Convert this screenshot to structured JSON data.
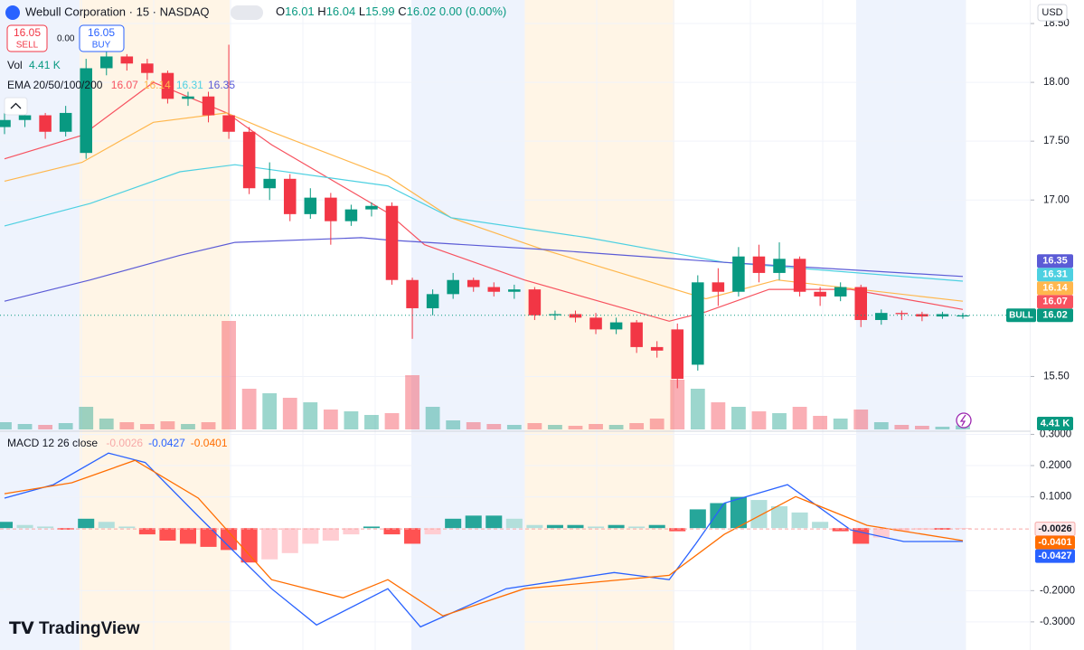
{
  "chart_data": {
    "type": "candlestick",
    "title": "Webull Corporation · 15 · NASDAQ",
    "ohlc_labels": [
      "O",
      "H",
      "L",
      "C"
    ],
    "ohlc_values": [
      16.01,
      16.04,
      15.99,
      16.02
    ],
    "change": "0.00 (0.00%)",
    "sell": {
      "price": 16.05,
      "label": "SELL"
    },
    "spread": "0.00",
    "buy": {
      "price": 16.05,
      "label": "BUY"
    },
    "volume_legend": {
      "label": "Vol",
      "value": "4.41 K"
    },
    "ema_legend": {
      "label": "EMA 20/50/100/200",
      "values": [
        16.07,
        16.14,
        16.31,
        16.35
      ]
    },
    "macd_legend": {
      "label": "MACD 12 26 close",
      "values": [
        -0.0026,
        -0.0427,
        -0.0401
      ]
    },
    "currency": "USD",
    "bull_label": "BULL",
    "brand": "TradingView",
    "up_color": "#089981",
    "down_color": "#f23645",
    "ylim": [
      15.05,
      18.7
    ],
    "yticks": [
      {
        "value": 18.5,
        "label": "18.50"
      },
      {
        "value": 18.0,
        "label": "18.00"
      },
      {
        "value": 17.5,
        "label": "17.50"
      },
      {
        "value": 17.0,
        "label": "17.00"
      },
      {
        "value": 15.5,
        "label": "15.50"
      }
    ],
    "open": [
      17.62,
      17.68,
      17.72,
      17.58,
      17.4,
      18.12,
      18.22,
      18.16,
      18.08,
      17.86,
      17.88,
      17.72,
      17.58,
      17.1,
      17.18,
      16.88,
      17.02,
      16.82,
      16.92,
      16.95,
      16.32,
      16.08,
      16.2,
      16.32,
      16.26,
      16.22,
      16.24,
      16.02,
      16.03,
      16.0,
      15.9,
      15.96,
      15.75,
      15.9,
      15.6,
      16.3,
      16.22,
      16.52,
      16.38,
      16.5,
      16.22,
      16.18,
      16.26,
      15.98,
      16.04,
      16.03,
      16.01,
      16.01
    ],
    "high": [
      17.74,
      17.78,
      17.74,
      17.8,
      18.2,
      18.28,
      18.24,
      18.2,
      18.1,
      17.92,
      17.92,
      18.32,
      17.62,
      17.32,
      17.22,
      17.1,
      17.06,
      16.96,
      16.98,
      16.98,
      16.34,
      16.24,
      16.38,
      16.34,
      16.3,
      16.28,
      16.26,
      16.06,
      16.06,
      16.04,
      16.0,
      15.98,
      15.8,
      15.95,
      16.36,
      16.42,
      16.6,
      16.62,
      16.64,
      16.52,
      16.26,
      16.3,
      16.28,
      16.07,
      16.06,
      16.05,
      16.05,
      16.04
    ],
    "low": [
      17.56,
      17.62,
      17.52,
      17.54,
      17.35,
      18.06,
      18.1,
      18.02,
      17.82,
      17.8,
      17.66,
      17.52,
      17.05,
      17.0,
      16.82,
      16.84,
      16.62,
      16.78,
      16.86,
      16.28,
      15.82,
      16.02,
      16.16,
      16.22,
      16.18,
      16.16,
      15.98,
      15.98,
      15.96,
      15.86,
      15.86,
      15.7,
      15.66,
      15.4,
      15.55,
      16.1,
      16.18,
      16.3,
      16.32,
      16.18,
      16.1,
      16.14,
      15.92,
      15.94,
      15.98,
      15.97,
      15.99,
      15.99
    ],
    "close": [
      17.68,
      17.72,
      17.58,
      17.74,
      18.12,
      18.22,
      18.16,
      18.08,
      17.86,
      17.88,
      17.72,
      17.58,
      17.1,
      17.18,
      16.88,
      17.02,
      16.82,
      16.92,
      16.95,
      16.32,
      16.08,
      16.2,
      16.32,
      16.26,
      16.22,
      16.24,
      16.02,
      16.03,
      16.0,
      15.9,
      15.96,
      15.75,
      15.72,
      15.48,
      16.3,
      16.22,
      16.52,
      16.38,
      16.5,
      16.22,
      16.18,
      16.26,
      15.98,
      16.04,
      16.03,
      16.01,
      16.03,
      16.02
    ],
    "volume": [
      8,
      6,
      5,
      7,
      25,
      12,
      8,
      6,
      9,
      6,
      8,
      120,
      45,
      40,
      35,
      30,
      22,
      20,
      16,
      18,
      60,
      25,
      10,
      8,
      6,
      5,
      7,
      5,
      4,
      6,
      5,
      7,
      12,
      55,
      45,
      30,
      25,
      20,
      18,
      25,
      15,
      12,
      22,
      8,
      5,
      4,
      3,
      4.41
    ],
    "ema": [
      {
        "color": "#f7525f",
        "x": [
          0,
          3.8,
          7.3,
          10.9,
          13.1,
          18.8,
          20.6,
          25.5,
          32.6,
          34.4,
          37.5,
          41.5,
          47
        ],
        "values": [
          17.35,
          17.55,
          18.0,
          17.74,
          17.47,
          16.89,
          16.62,
          16.32,
          15.97,
          16.05,
          16.24,
          16.24,
          16.07
        ]
      },
      {
        "color": "#ffb74d",
        "x": [
          0,
          3.8,
          7.3,
          10.9,
          13.1,
          18.8,
          21.9,
          26.4,
          34.4,
          37.9,
          47
        ],
        "values": [
          17.16,
          17.32,
          17.66,
          17.74,
          17.58,
          17.2,
          16.85,
          16.58,
          16.16,
          16.32,
          16.14
        ]
      },
      {
        "color": "#4dd0e1",
        "x": [
          0,
          4.2,
          8.6,
          11.3,
          18.8,
          21.9,
          28.6,
          35.3,
          47
        ],
        "values": [
          16.78,
          16.97,
          17.24,
          17.3,
          17.12,
          16.85,
          16.68,
          16.47,
          16.31
        ]
      },
      {
        "color": "#5b5bd6",
        "x": [
          0,
          4.2,
          8.6,
          11.3,
          17.5,
          18.8,
          26.4,
          35.3,
          47
        ],
        "values": [
          16.14,
          16.32,
          16.53,
          16.64,
          16.68,
          16.66,
          16.58,
          16.47,
          16.35
        ]
      }
    ],
    "y2lim": [
      -0.39,
      0.31
    ],
    "y2ticks": [
      {
        "value": 0.3,
        "label": "0.3000"
      },
      {
        "value": 0.2,
        "label": "0.2000"
      },
      {
        "value": 0.1,
        "label": "0.1000"
      },
      {
        "value": -0.2,
        "label": "-0.2000"
      },
      {
        "value": -0.3,
        "label": "-0.3000"
      }
    ],
    "macd_hist": [
      0.02,
      0.01,
      0.005,
      -0.005,
      0.03,
      0.02,
      0.005,
      -0.02,
      -0.04,
      -0.05,
      -0.06,
      -0.07,
      -0.11,
      -0.1,
      -0.08,
      -0.05,
      -0.04,
      -0.02,
      0.005,
      -0.02,
      -0.05,
      -0.02,
      0.03,
      0.04,
      0.04,
      0.03,
      0.01,
      0.01,
      0.01,
      0.005,
      0.01,
      0.005,
      0.01,
      -0.01,
      0.06,
      0.08,
      0.1,
      0.09,
      0.07,
      0.05,
      0.02,
      -0.01,
      -0.05,
      -0.03,
      -0.01,
      -0.005,
      -0.005,
      -0.0026
    ],
    "macd_colors": [
      "#f7a9a7",
      "#2962ff",
      "#ff6d00"
    ],
    "macd_line": {
      "x": [
        0,
        2.4,
        5.1,
        6.9,
        9.5,
        13.1,
        15.3,
        18.8,
        20.4,
        24.6,
        29.9,
        32.6,
        33.9,
        35.3,
        38.4,
        41.5,
        44.1,
        47
      ],
      "values": [
        0.096,
        0.139,
        0.24,
        0.21,
        0.038,
        -0.194,
        -0.31,
        -0.194,
        -0.316,
        -0.194,
        -0.142,
        -0.165,
        -0.05,
        0.08,
        0.139,
        -0.006,
        -0.043,
        -0.0427
      ]
    },
    "signal_line": {
      "x": [
        0,
        3.3,
        6.4,
        9.5,
        13.1,
        16.6,
        18.8,
        21.5,
        25.5,
        32.6,
        35.3,
        38.8,
        42.3,
        47
      ],
      "values": [
        0.11,
        0.145,
        0.217,
        0.096,
        -0.165,
        -0.223,
        -0.165,
        -0.281,
        -0.194,
        -0.151,
        -0.02,
        0.101,
        0.009,
        -0.0401
      ]
    }
  }
}
